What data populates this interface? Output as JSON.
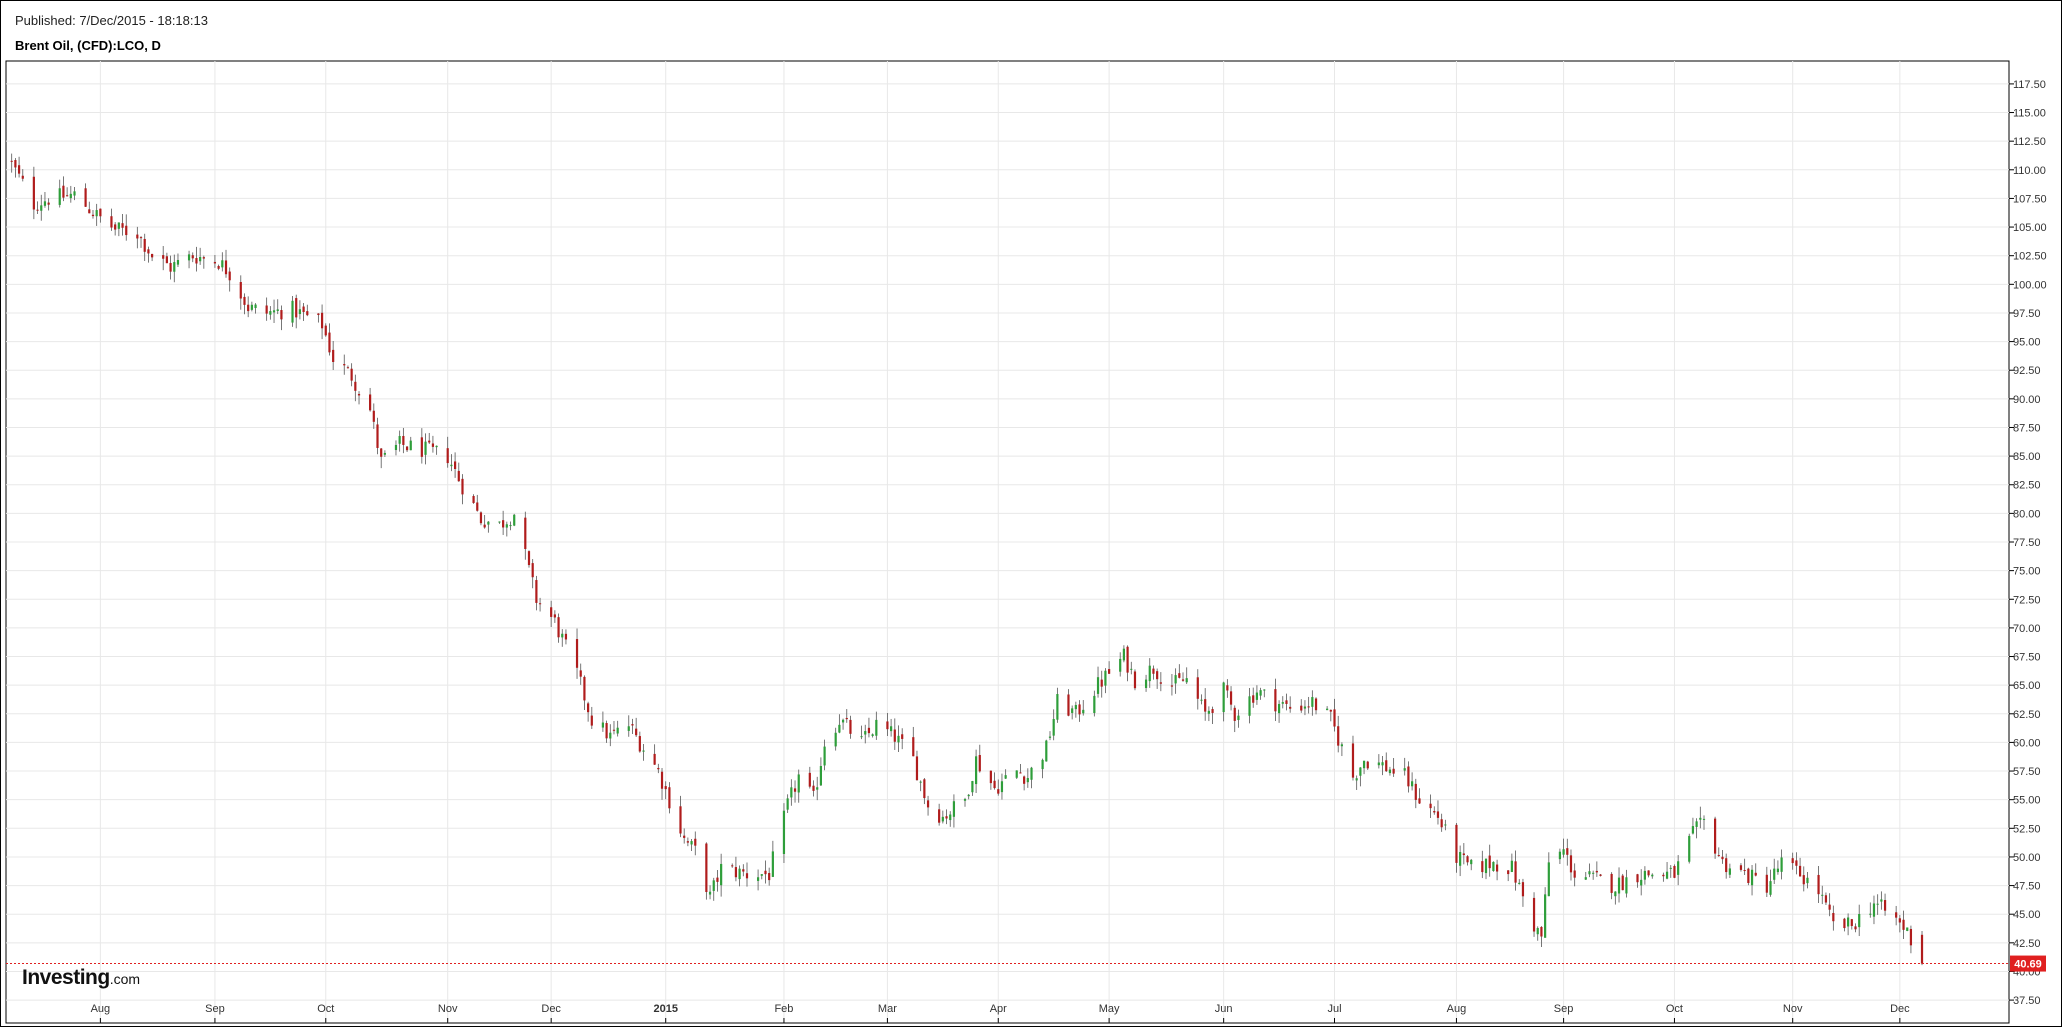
{
  "header": {
    "published": "Published: 7/Dec/2015 - 18:18:13",
    "title": "Brent Oil, (CFD):LCO, D"
  },
  "logo": {
    "brand": "Investing",
    "domain": ".com"
  },
  "colors": {
    "up": "#2e9e3a",
    "down": "#b01c1c",
    "wick": "#555555",
    "grid": "#e8e8e8",
    "last_price": "#e02020"
  },
  "chart_data": {
    "type": "candlestick",
    "title": "Brent Oil, (CFD):LCO, D",
    "xlabel": "",
    "ylabel": "",
    "ylim": [
      35.5,
      119.5
    ],
    "yticks": [
      37.5,
      40.0,
      42.5,
      45.0,
      47.5,
      50.0,
      52.5,
      55.0,
      57.5,
      60.0,
      62.5,
      65.0,
      67.5,
      70.0,
      72.5,
      75.0,
      77.5,
      80.0,
      82.5,
      85.0,
      87.5,
      90.0,
      92.5,
      95.0,
      97.5,
      100.0,
      102.5,
      105.0,
      107.5,
      110.0,
      112.5,
      115.0,
      117.5
    ],
    "ytick_labels": [
      "37.50",
      "40.00",
      "42.50",
      "45.00",
      "47.50",
      "50.00",
      "52.50",
      "55.00",
      "57.50",
      "60.00",
      "62.50",
      "65.00",
      "67.50",
      "70.00",
      "72.50",
      "75.00",
      "77.50",
      "80.00",
      "82.50",
      "85.00",
      "87.50",
      "90.00",
      "92.50",
      "95.00",
      "97.50",
      "100.00",
      "102.50",
      "105.00",
      "107.50",
      "110.00",
      "112.50",
      "115.00",
      "117.50"
    ],
    "x_ticks": [
      {
        "label": "Aug",
        "date": "2014-08-01",
        "bold": false
      },
      {
        "label": "Sep",
        "date": "2014-09-01",
        "bold": false
      },
      {
        "label": "Oct",
        "date": "2014-10-01",
        "bold": false
      },
      {
        "label": "Nov",
        "date": "2014-11-03",
        "bold": false
      },
      {
        "label": "Dec",
        "date": "2014-12-01",
        "bold": false
      },
      {
        "label": "2015",
        "date": "2015-01-01",
        "bold": true
      },
      {
        "label": "Feb",
        "date": "2015-02-02",
        "bold": false
      },
      {
        "label": "Mar",
        "date": "2015-03-02",
        "bold": false
      },
      {
        "label": "Apr",
        "date": "2015-04-01",
        "bold": false
      },
      {
        "label": "May",
        "date": "2015-05-01",
        "bold": false
      },
      {
        "label": "Jun",
        "date": "2015-06-01",
        "bold": false
      },
      {
        "label": "Jul",
        "date": "2015-07-01",
        "bold": false
      },
      {
        "label": "Aug",
        "date": "2015-08-03",
        "bold": false
      },
      {
        "label": "Sep",
        "date": "2015-09-01",
        "bold": false
      },
      {
        "label": "Oct",
        "date": "2015-10-01",
        "bold": false
      },
      {
        "label": "Nov",
        "date": "2015-11-02",
        "bold": false
      },
      {
        "label": "Dec",
        "date": "2015-12-01",
        "bold": false
      }
    ],
    "grid": true,
    "last_price": 40.69,
    "last_price_label": "40.69",
    "close_path": [
      [
        "2014-07-08",
        110.5
      ],
      [
        "2014-07-14",
        107.0
      ],
      [
        "2014-07-18",
        107.5
      ],
      [
        "2014-07-25",
        107.8
      ],
      [
        "2014-07-31",
        106.0
      ],
      [
        "2014-08-05",
        104.8
      ],
      [
        "2014-08-11",
        104.5
      ],
      [
        "2014-08-15",
        102.5
      ],
      [
        "2014-08-20",
        101.5
      ],
      [
        "2014-08-26",
        102.5
      ],
      [
        "2014-09-02",
        102.0
      ],
      [
        "2014-09-05",
        101.0
      ],
      [
        "2014-09-10",
        98.0
      ],
      [
        "2014-09-15",
        97.5
      ],
      [
        "2014-09-22",
        97.8
      ],
      [
        "2014-09-30",
        96.5
      ],
      [
        "2014-10-03",
        93.5
      ],
      [
        "2014-10-08",
        92.0
      ],
      [
        "2014-10-13",
        89.0
      ],
      [
        "2014-10-16",
        84.5
      ],
      [
        "2014-10-21",
        86.0
      ],
      [
        "2014-10-28",
        85.5
      ],
      [
        "2014-11-03",
        85.0
      ],
      [
        "2014-11-06",
        83.0
      ],
      [
        "2014-11-12",
        79.5
      ],
      [
        "2014-11-17",
        79.0
      ],
      [
        "2014-11-21",
        80.0
      ],
      [
        "2014-11-27",
        72.5
      ],
      [
        "2014-12-02",
        70.5
      ],
      [
        "2014-12-08",
        66.0
      ],
      [
        "2014-12-12",
        62.0
      ],
      [
        "2014-12-17",
        60.5
      ],
      [
        "2014-12-22",
        61.5
      ],
      [
        "2014-12-30",
        57.5
      ],
      [
        "2015-01-06",
        51.5
      ],
      [
        "2015-01-09",
        50.5
      ],
      [
        "2015-01-13",
        46.5
      ],
      [
        "2015-01-16",
        49.0
      ],
      [
        "2015-01-23",
        48.5
      ],
      [
        "2015-01-29",
        48.5
      ],
      [
        "2015-02-03",
        54.5
      ],
      [
        "2015-02-06",
        57.0
      ],
      [
        "2015-02-10",
        55.0
      ],
      [
        "2015-02-13",
        60.0
      ],
      [
        "2015-02-17",
        62.0
      ],
      [
        "2015-02-23",
        60.0
      ],
      [
        "2015-02-27",
        61.5
      ],
      [
        "2015-03-04",
        60.5
      ],
      [
        "2015-03-09",
        58.5
      ],
      [
        "2015-03-13",
        54.5
      ],
      [
        "2015-03-17",
        53.5
      ],
      [
        "2015-03-23",
        55.0
      ],
      [
        "2015-03-26",
        58.5
      ],
      [
        "2015-03-31",
        56.0
      ],
      [
        "2015-04-06",
        57.5
      ],
      [
        "2015-04-09",
        57.0
      ],
      [
        "2015-04-14",
        59.5
      ],
      [
        "2015-04-17",
        63.5
      ],
      [
        "2015-04-22",
        62.5
      ],
      [
        "2015-04-28",
        65.0
      ],
      [
        "2015-05-05",
        67.5
      ],
      [
        "2015-05-08",
        65.5
      ],
      [
        "2015-05-13",
        66.5
      ],
      [
        "2015-05-18",
        65.0
      ],
      [
        "2015-05-22",
        65.5
      ],
      [
        "2015-05-27",
        62.5
      ],
      [
        "2015-06-01",
        64.5
      ],
      [
        "2015-06-04",
        62.5
      ],
      [
        "2015-06-10",
        64.5
      ],
      [
        "2015-06-15",
        63.5
      ],
      [
        "2015-06-19",
        63.0
      ],
      [
        "2015-06-25",
        63.5
      ],
      [
        "2015-06-30",
        62.0
      ],
      [
        "2015-07-06",
        57.0
      ],
      [
        "2015-07-09",
        58.5
      ],
      [
        "2015-07-14",
        58.0
      ],
      [
        "2015-07-20",
        57.0
      ],
      [
        "2015-07-24",
        55.0
      ],
      [
        "2015-07-29",
        53.5
      ],
      [
        "2015-08-03",
        50.0
      ],
      [
        "2015-08-07",
        49.0
      ],
      [
        "2015-08-13",
        49.5
      ],
      [
        "2015-08-18",
        49.0
      ],
      [
        "2015-08-24",
        44.0
      ],
      [
        "2015-08-26",
        43.0
      ],
      [
        "2015-08-28",
        49.5
      ],
      [
        "2015-09-01",
        50.5
      ],
      [
        "2015-09-04",
        48.5
      ],
      [
        "2015-09-10",
        48.0
      ],
      [
        "2015-09-15",
        47.5
      ],
      [
        "2015-09-21",
        48.5
      ],
      [
        "2015-09-25",
        48.5
      ],
      [
        "2015-10-01",
        48.5
      ],
      [
        "2015-10-06",
        52.0
      ],
      [
        "2015-10-09",
        53.0
      ],
      [
        "2015-10-14",
        49.5
      ],
      [
        "2015-10-20",
        48.5
      ],
      [
        "2015-10-26",
        47.5
      ],
      [
        "2015-10-30",
        49.5
      ],
      [
        "2015-11-04",
        48.5
      ],
      [
        "2015-11-09",
        47.0
      ],
      [
        "2015-11-13",
        44.0
      ],
      [
        "2015-11-18",
        44.0
      ],
      [
        "2015-11-24",
        46.0
      ],
      [
        "2015-11-30",
        44.5
      ],
      [
        "2015-12-03",
        43.5
      ],
      [
        "2015-12-07",
        40.69
      ]
    ]
  }
}
